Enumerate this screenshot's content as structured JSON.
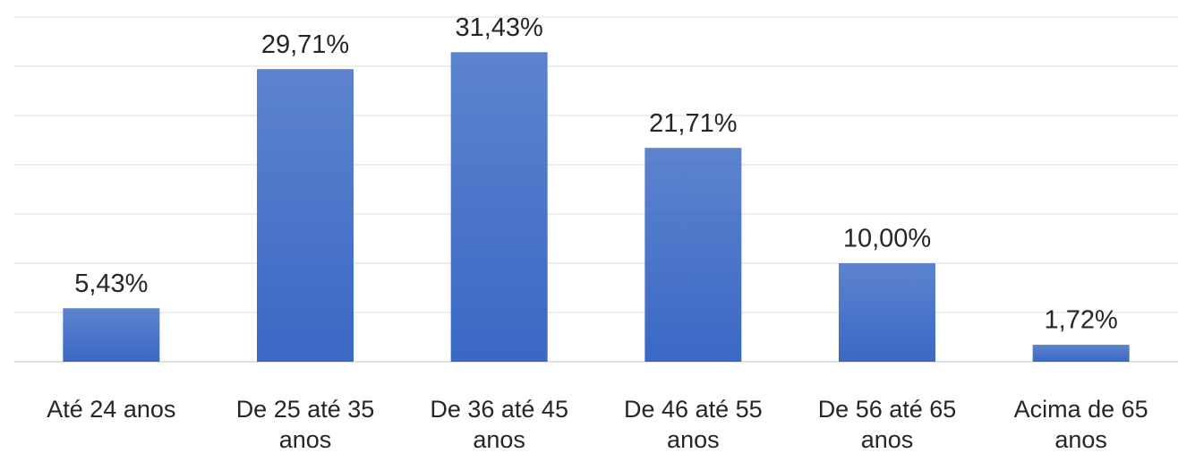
{
  "chart_data": {
    "type": "bar",
    "categories": [
      "Até 24 anos",
      "De 25 até 35 anos",
      "De 36 até 45 anos",
      "De 46 até 55 anos",
      "De 56 até 65 anos",
      "Acima de 65 anos"
    ],
    "values": [
      5.43,
      29.71,
      31.43,
      21.71,
      10.0,
      1.72
    ],
    "value_labels": [
      "5,43%",
      "29,71%",
      "31,43%",
      "21,71%",
      "10,00%",
      "1,72%"
    ],
    "color": "#3a68c4",
    "ylim": [
      0,
      35
    ],
    "yticks": [
      0,
      5,
      10,
      15,
      20,
      25,
      30,
      35
    ],
    "grid": true
  }
}
